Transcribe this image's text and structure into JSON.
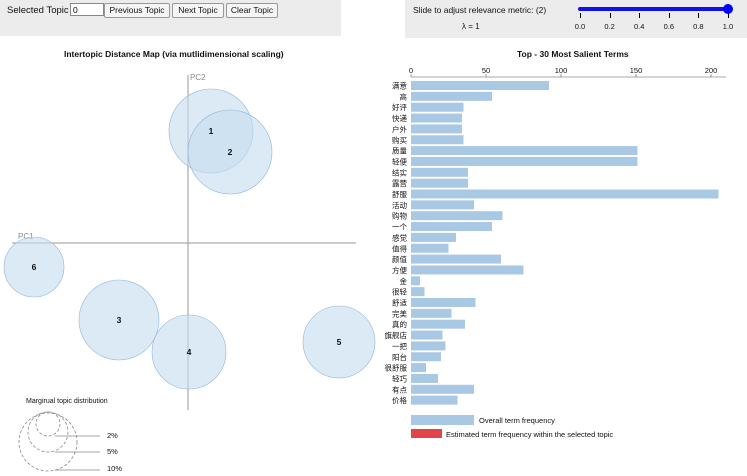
{
  "controls": {
    "selected_topic_label": "Selected Topic",
    "selected_topic_value": "0",
    "prev_label": "Previous Topic",
    "next_label": "Next Topic",
    "clear_label": "Clear Topic"
  },
  "slider": {
    "label": "Slide to adjust relevance metric: (2)",
    "lambda_label": "λ = 1",
    "value": 1.0,
    "ticks": [
      "0.0",
      "0.2",
      "0.4",
      "0.6",
      "0.8",
      "1.0"
    ]
  },
  "left_title": "Intertopic Distance Map (via mutlidimensional scaling)",
  "right_title": "Top - 30 Most Salient Terms",
  "axes": {
    "pc1": "PC1",
    "pc2": "PC2"
  },
  "topics": [
    {
      "id": "1"
    },
    {
      "id": "2"
    },
    {
      "id": "3"
    },
    {
      "id": "4"
    },
    {
      "id": "5"
    },
    {
      "id": "6"
    }
  ],
  "marginal": {
    "title": "Margirual topic distribution",
    "levels": [
      "2%",
      "5%",
      "10%"
    ]
  },
  "chart_data": {
    "type": "bar",
    "orientation": "horizontal",
    "title": "Top - 30 Most Salient Terms",
    "xlim": [
      0,
      210
    ],
    "xticks": [
      "0",
      "50",
      "100",
      "150",
      "200"
    ],
    "categories": [
      "满意",
      "高",
      "好评",
      "快递",
      "户外",
      "购买",
      "质量",
      "轻便",
      "结实",
      "露营",
      "舒服",
      "活动",
      "购物",
      "一个",
      "感觉",
      "值得",
      "颜值",
      "方便",
      "金",
      "很轻",
      "舒适",
      "完美",
      "真的",
      "旗舰店",
      "一把",
      "阳台",
      "很舒服",
      "轻巧",
      "有点",
      "价格"
    ],
    "series": [
      {
        "name": "Overall term frequency",
        "color": "#a9c8e4",
        "values": [
          92,
          54,
          35,
          34,
          34,
          35,
          151,
          151,
          38,
          38,
          205,
          42,
          61,
          54,
          30,
          25,
          60,
          75,
          6,
          9,
          43,
          27,
          36,
          21,
          23,
          20,
          10,
          18,
          42,
          31
        ]
      }
    ],
    "legend": [
      "Overall term frequency",
      "Estimated term frequency within the selected topic"
    ],
    "legend_colors": [
      "#a9c8e4",
      "#e0454a"
    ]
  }
}
